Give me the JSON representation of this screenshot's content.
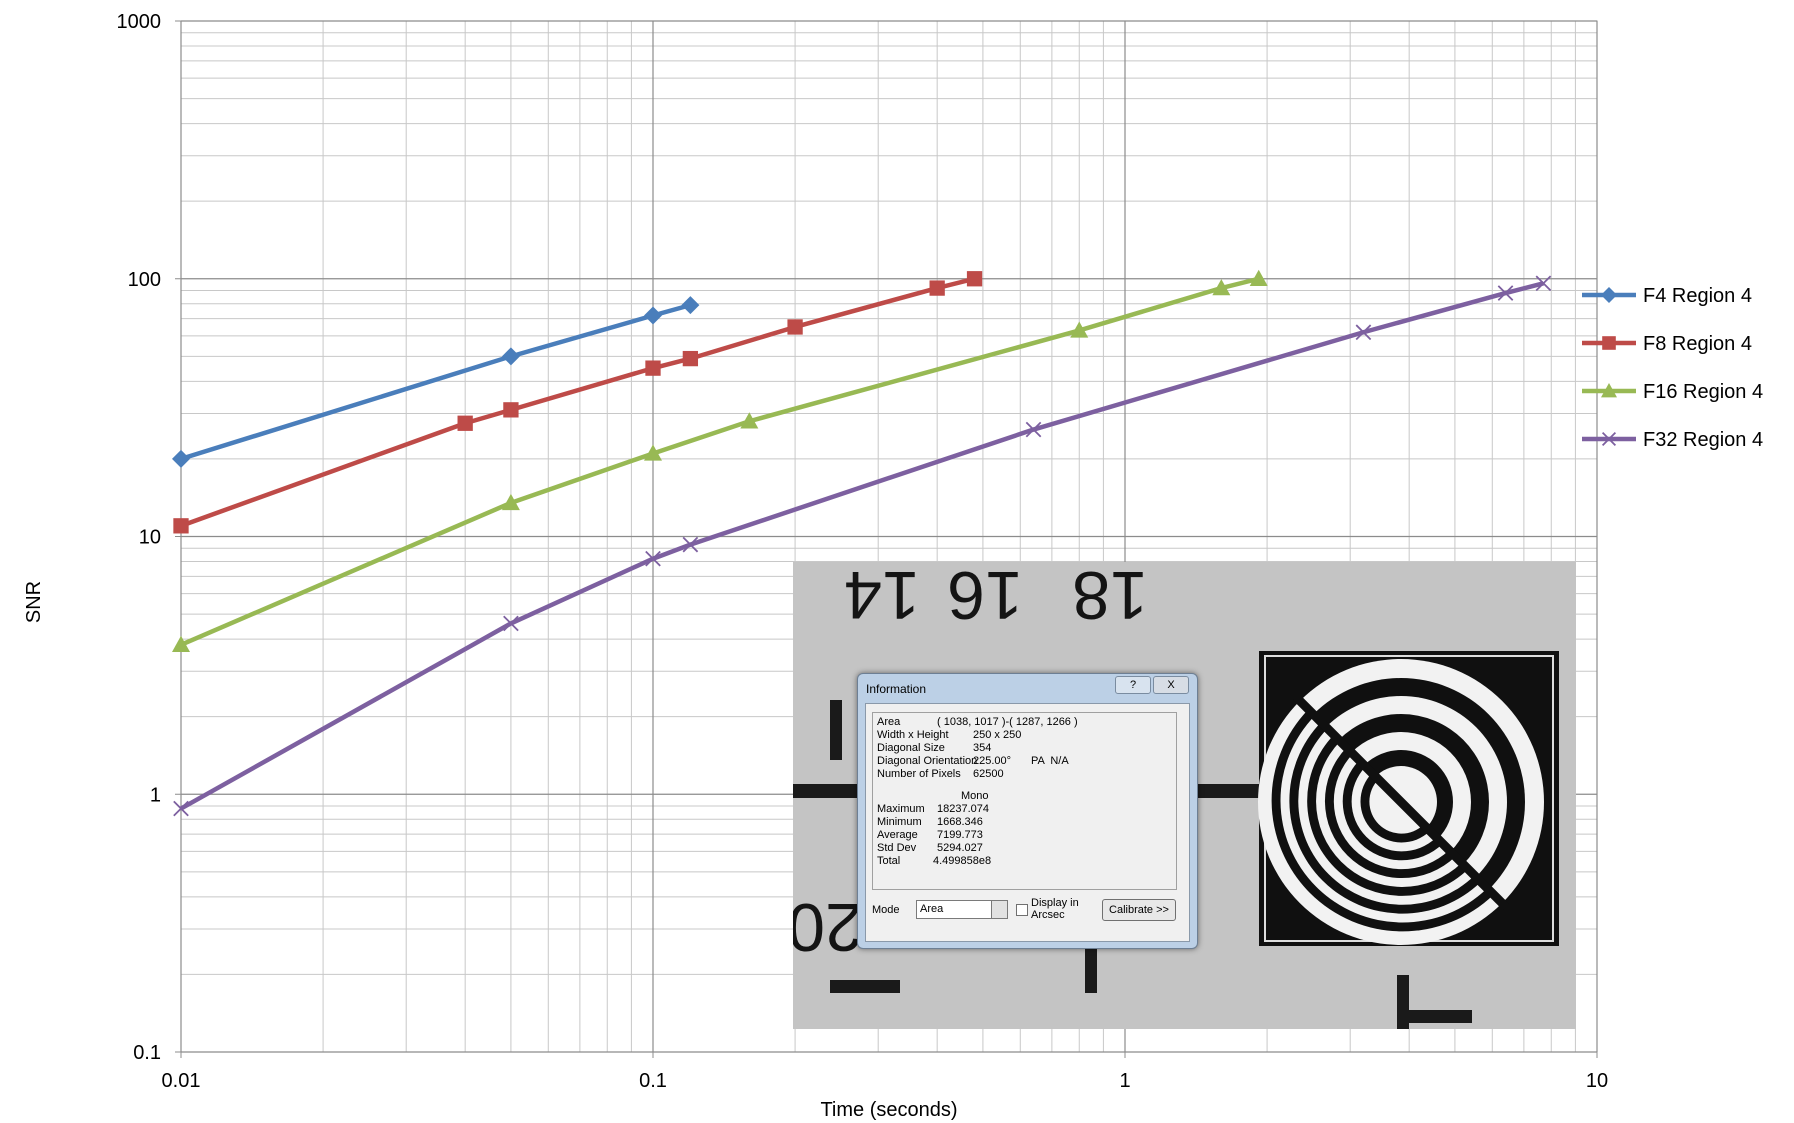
{
  "chart_data": {
    "type": "line",
    "x_label": "Time (seconds)",
    "y_label": "SNR",
    "xscale": "log",
    "yscale": "log",
    "grid": true,
    "minor_grid": true,
    "legend": "right",
    "xlim": [
      0.01,
      10
    ],
    "xticks": [
      0.01,
      0.1,
      1,
      10
    ],
    "ylim": [
      0.1,
      1000
    ],
    "yticks": [
      0.1,
      1,
      10,
      100,
      1000
    ],
    "series": [
      {
        "name": "F4 Region 4",
        "color": "#4a7ebb",
        "marker": "diamond",
        "x": [
          0.01,
          0.05,
          0.1,
          0.12
        ],
        "values": [
          20,
          50,
          72,
          79
        ]
      },
      {
        "name": "F8 Region 4",
        "color": "#be4b48",
        "marker": "square",
        "x": [
          0.01,
          0.04,
          0.05,
          0.1,
          0.12,
          0.2,
          0.4,
          0.48
        ],
        "values": [
          11,
          27.5,
          31,
          45,
          49,
          65,
          92,
          100
        ]
      },
      {
        "name": "F16 Region 4",
        "color": "#98b954",
        "marker": "triangle",
        "x": [
          0.01,
          0.05,
          0.1,
          0.16,
          0.8,
          1.6,
          1.92
        ],
        "values": [
          3.8,
          13.5,
          21,
          28,
          63,
          92,
          100
        ]
      },
      {
        "name": "F32 Region 4",
        "color": "#7d60a0",
        "marker": "x",
        "x": [
          0.01,
          0.05,
          0.1,
          0.12,
          0.64,
          3.2,
          6.4,
          7.7
        ],
        "values": [
          0.88,
          4.6,
          8.2,
          9.3,
          26,
          62,
          88,
          96
        ]
      }
    ]
  },
  "inset": {
    "scale_numbers": [
      "14",
      "16",
      "18",
      "20"
    ],
    "dialog": {
      "title": "Information",
      "help": "?",
      "close": "X",
      "rows": [
        [
          "Area",
          "( 1038, 1017 )-( 1287, 1266 )"
        ],
        [
          "Width x Height",
          "250 x 250"
        ],
        [
          "Diagonal Size",
          "354"
        ],
        [
          "Diagonal Orientation",
          "225.00°",
          "PA  N/A"
        ],
        [
          "Number of Pixels",
          "62500"
        ]
      ],
      "channel": "Mono",
      "stats": [
        [
          "Maximum",
          "18237.074"
        ],
        [
          "Minimum",
          "1668.346"
        ],
        [
          "Average",
          "7199.773"
        ],
        [
          "Std Dev",
          "5294.027"
        ],
        [
          "Total",
          "4.499858e8"
        ]
      ],
      "mode_label": "Mode",
      "mode": "Area",
      "checkbox": "Display in Arcsec",
      "button": "Calibrate >>"
    }
  }
}
